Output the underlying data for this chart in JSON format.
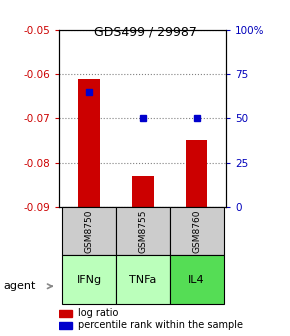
{
  "title": "GDS499 / 29987",
  "samples": [
    "GSM8750",
    "GSM8755",
    "GSM8760"
  ],
  "agents": [
    "IFNg",
    "TNFa",
    "IL4"
  ],
  "log_ratios": [
    -0.061,
    -0.083,
    -0.075
  ],
  "percentile_ranks_pct": [
    65,
    50,
    50
  ],
  "ylim_left": [
    -0.09,
    -0.05
  ],
  "ylim_right": [
    0,
    100
  ],
  "yticks_left": [
    -0.09,
    -0.08,
    -0.07,
    -0.06,
    -0.05
  ],
  "yticks_right": [
    0,
    25,
    50,
    75,
    100
  ],
  "bar_color": "#cc0000",
  "point_color": "#0000cc",
  "agent_colors": [
    "#bbffbb",
    "#bbffbb",
    "#55dd55"
  ],
  "sample_bg_color": "#cccccc",
  "left_label_color": "#cc0000",
  "right_label_color": "#0000bb",
  "bar_bottom": -0.09,
  "bar_width": 0.4
}
